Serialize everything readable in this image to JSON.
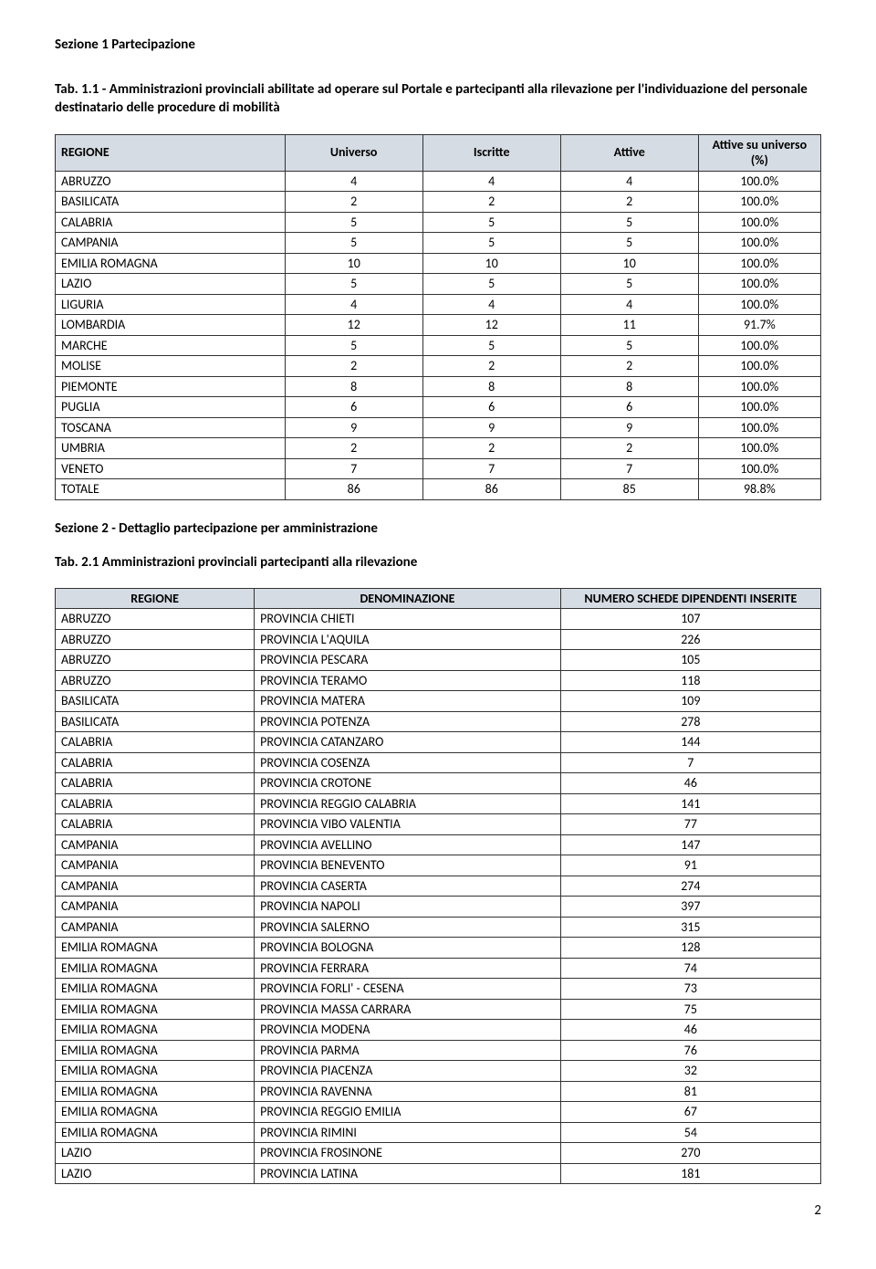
{
  "section1_title": "Sezione 1 Partecipazione",
  "tab11_caption": "Tab. 1.1 - Amministrazioni provinciali abilitate ad operare sul Portale e partecipanti alla rilevazione per l'individuazione del personale destinatario delle procedure di mobilità",
  "table1": {
    "type": "table",
    "header_bg": "#d6dce4",
    "border_color": "#333333",
    "col_widths": [
      "30%",
      "18%",
      "18%",
      "18%",
      "16%"
    ],
    "columns": [
      "REGIONE",
      "Universo",
      "Iscritte",
      "Attive",
      "Attive su universo (%)"
    ],
    "rows": [
      [
        "ABRUZZO",
        "4",
        "4",
        "4",
        "100.0%"
      ],
      [
        "BASILICATA",
        "2",
        "2",
        "2",
        "100.0%"
      ],
      [
        "CALABRIA",
        "5",
        "5",
        "5",
        "100.0%"
      ],
      [
        "CAMPANIA",
        "5",
        "5",
        "5",
        "100.0%"
      ],
      [
        "EMILIA ROMAGNA",
        "10",
        "10",
        "10",
        "100.0%"
      ],
      [
        "LAZIO",
        "5",
        "5",
        "5",
        "100.0%"
      ],
      [
        "LIGURIA",
        "4",
        "4",
        "4",
        "100.0%"
      ],
      [
        "LOMBARDIA",
        "12",
        "12",
        "11",
        "91.7%"
      ],
      [
        "MARCHE",
        "5",
        "5",
        "5",
        "100.0%"
      ],
      [
        "MOLISE",
        "2",
        "2",
        "2",
        "100.0%"
      ],
      [
        "PIEMONTE",
        "8",
        "8",
        "8",
        "100.0%"
      ],
      [
        "PUGLIA",
        "6",
        "6",
        "6",
        "100.0%"
      ],
      [
        "TOSCANA",
        "9",
        "9",
        "9",
        "100.0%"
      ],
      [
        "UMBRIA",
        "2",
        "2",
        "2",
        "100.0%"
      ],
      [
        "VENETO",
        "7",
        "7",
        "7",
        "100.0%"
      ],
      [
        "TOTALE",
        "86",
        "86",
        "85",
        "98.8%"
      ]
    ]
  },
  "section2_title": "Sezione 2 - Dettaglio partecipazione per amministrazione",
  "tab21_caption": "Tab. 2.1 Amministrazioni provinciali partecipanti alla rilevazione",
  "table2": {
    "type": "table",
    "header_bg": "#d6dce4",
    "border_color": "#333333",
    "col_widths": [
      "26%",
      "40%",
      "34%"
    ],
    "columns": [
      "REGIONE",
      "DENOMINAZIONE",
      "NUMERO SCHEDE DIPENDENTI INSERITE"
    ],
    "rows": [
      [
        "ABRUZZO",
        "PROVINCIA CHIETI",
        "107"
      ],
      [
        "ABRUZZO",
        "PROVINCIA L'AQUILA",
        "226"
      ],
      [
        "ABRUZZO",
        "PROVINCIA PESCARA",
        "105"
      ],
      [
        "ABRUZZO",
        "PROVINCIA TERAMO",
        "118"
      ],
      [
        "BASILICATA",
        "PROVINCIA MATERA",
        "109"
      ],
      [
        "BASILICATA",
        "PROVINCIA POTENZA",
        "278"
      ],
      [
        "CALABRIA",
        "PROVINCIA CATANZARO",
        "144"
      ],
      [
        "CALABRIA",
        "PROVINCIA COSENZA",
        "7"
      ],
      [
        "CALABRIA",
        "PROVINCIA CROTONE",
        "46"
      ],
      [
        "CALABRIA",
        "PROVINCIA REGGIO CALABRIA",
        "141"
      ],
      [
        "CALABRIA",
        "PROVINCIA VIBO VALENTIA",
        "77"
      ],
      [
        "CAMPANIA",
        "PROVINCIA AVELLINO",
        "147"
      ],
      [
        "CAMPANIA",
        "PROVINCIA BENEVENTO",
        "91"
      ],
      [
        "CAMPANIA",
        "PROVINCIA CASERTA",
        "274"
      ],
      [
        "CAMPANIA",
        "PROVINCIA NAPOLI",
        "397"
      ],
      [
        "CAMPANIA",
        "PROVINCIA SALERNO",
        "315"
      ],
      [
        "EMILIA ROMAGNA",
        "PROVINCIA BOLOGNA",
        "128"
      ],
      [
        "EMILIA ROMAGNA",
        "PROVINCIA FERRARA",
        "74"
      ],
      [
        "EMILIA ROMAGNA",
        "PROVINCIA FORLI' - CESENA",
        "73"
      ],
      [
        "EMILIA ROMAGNA",
        "PROVINCIA MASSA CARRARA",
        "75"
      ],
      [
        "EMILIA ROMAGNA",
        "PROVINCIA MODENA",
        "46"
      ],
      [
        "EMILIA ROMAGNA",
        "PROVINCIA PARMA",
        "76"
      ],
      [
        "EMILIA ROMAGNA",
        "PROVINCIA PIACENZA",
        "32"
      ],
      [
        "EMILIA ROMAGNA",
        "PROVINCIA RAVENNA",
        "81"
      ],
      [
        "EMILIA ROMAGNA",
        "PROVINCIA REGGIO EMILIA",
        "67"
      ],
      [
        "EMILIA ROMAGNA",
        "PROVINCIA RIMINI",
        "54"
      ],
      [
        "LAZIO",
        "PROVINCIA FROSINONE",
        "270"
      ],
      [
        "LAZIO",
        "PROVINCIA LATINA",
        "181"
      ]
    ]
  },
  "page_number": "2"
}
